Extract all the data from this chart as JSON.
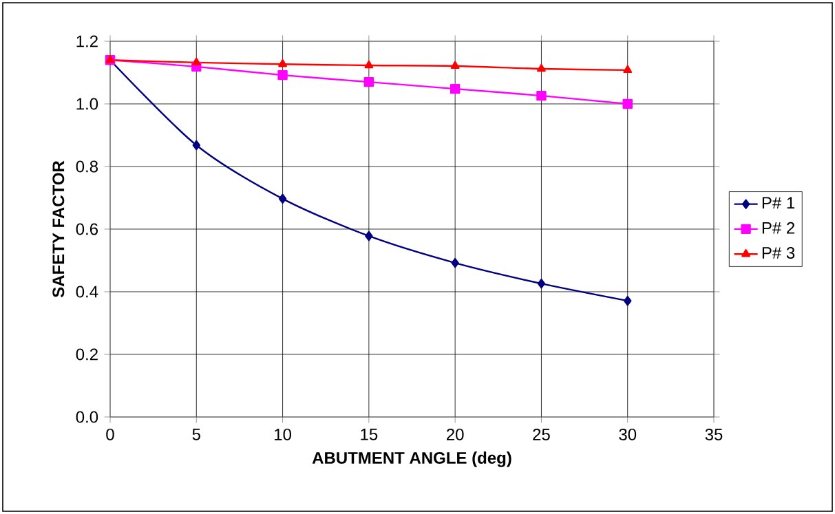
{
  "chart_data": {
    "type": "line",
    "xlabel": "ABUTMENT ANGLE (deg)",
    "ylabel": "SAFETY FACTOR",
    "x": [
      0,
      5,
      10,
      15,
      20,
      25,
      30
    ],
    "series": [
      {
        "name": "P# 1",
        "color": "#000080",
        "marker": "diamond",
        "values": [
          1.14,
          0.868,
          0.697,
          0.578,
          0.492,
          0.426,
          0.371
        ]
      },
      {
        "name": "P# 2",
        "color": "#ff00ff",
        "marker": "square",
        "values": [
          1.14,
          1.119,
          1.092,
          1.07,
          1.048,
          1.026,
          1.0
        ]
      },
      {
        "name": "P# 3",
        "color": "#ff0000",
        "marker": "triangle",
        "values": [
          1.14,
          1.132,
          1.127,
          1.123,
          1.121,
          1.112,
          1.108
        ]
      }
    ],
    "xlim": [
      0,
      35
    ],
    "xticks": [
      0,
      5,
      10,
      15,
      20,
      25,
      30,
      35
    ],
    "ylim": [
      0,
      1.2
    ],
    "yticks": [
      {
        "value": 0,
        "label": "0.0"
      },
      0.2,
      0.4,
      0.6,
      0.8,
      {
        "value": 1.0,
        "label": "1.0"
      },
      1.2
    ],
    "grid": true,
    "legend": "right",
    "line_style": "solid"
  }
}
